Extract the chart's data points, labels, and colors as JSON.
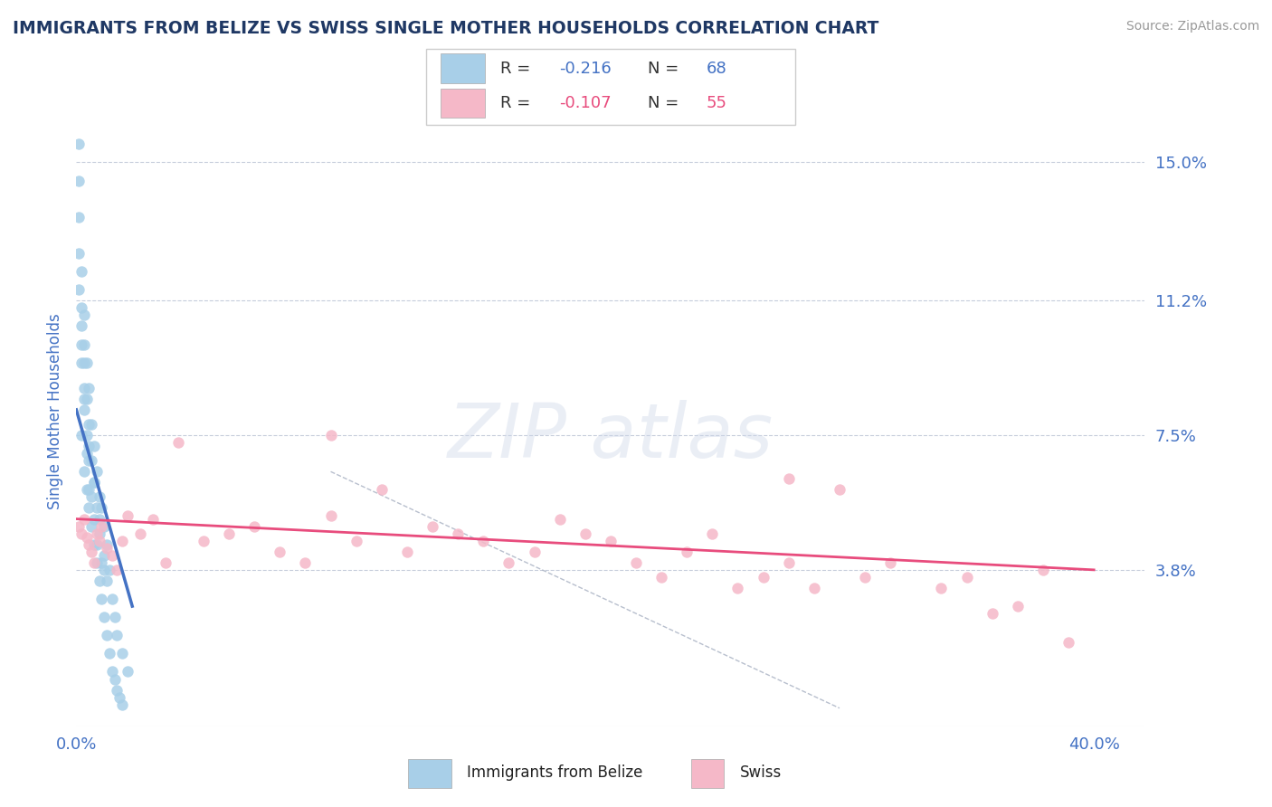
{
  "title": "IMMIGRANTS FROM BELIZE VS SWISS SINGLE MOTHER HOUSEHOLDS CORRELATION CHART",
  "source": "Source: ZipAtlas.com",
  "ylabel": "Single Mother Households",
  "xlim": [
    0.0,
    0.42
  ],
  "ylim": [
    -0.005,
    0.168
  ],
  "yticks": [
    0.038,
    0.075,
    0.112,
    0.15
  ],
  "ytick_labels": [
    "3.8%",
    "7.5%",
    "11.2%",
    "15.0%"
  ],
  "xticks": [
    0.0,
    0.1,
    0.2,
    0.3,
    0.4
  ],
  "xtick_labels": [
    "0.0%",
    "",
    "",
    "",
    "40.0%"
  ],
  "belize_color": "#a8cfe8",
  "swiss_color": "#f5b8c8",
  "belize_line_color": "#4472c4",
  "swiss_line_color": "#e84c7d",
  "belize_R_label": "-0.216",
  "belize_N_label": "68",
  "swiss_R_label": "-0.107",
  "swiss_N_label": "55",
  "title_color": "#1f3864",
  "tick_color": "#4472c4",
  "background_color": "#ffffff",
  "grid_color": "#c0c8d8",
  "belize_line_x": [
    0.0,
    0.022
  ],
  "belize_line_y": [
    0.082,
    0.028
  ],
  "swiss_line_x": [
    0.0,
    0.4
  ],
  "swiss_line_y": [
    0.052,
    0.038
  ],
  "diag_line_x": [
    0.1,
    0.3
  ],
  "diag_line_y": [
    0.065,
    0.0
  ],
  "belize_x": [
    0.001,
    0.001,
    0.001,
    0.001,
    0.001,
    0.002,
    0.002,
    0.002,
    0.002,
    0.002,
    0.003,
    0.003,
    0.003,
    0.003,
    0.003,
    0.004,
    0.004,
    0.004,
    0.004,
    0.005,
    0.005,
    0.005,
    0.005,
    0.006,
    0.006,
    0.006,
    0.007,
    0.007,
    0.007,
    0.008,
    0.008,
    0.008,
    0.009,
    0.009,
    0.01,
    0.01,
    0.011,
    0.011,
    0.012,
    0.012,
    0.013,
    0.014,
    0.015,
    0.016,
    0.018,
    0.02,
    0.002,
    0.003,
    0.004,
    0.005,
    0.006,
    0.007,
    0.008,
    0.009,
    0.01,
    0.011,
    0.012,
    0.013,
    0.014,
    0.015,
    0.016,
    0.017,
    0.018,
    0.003,
    0.005,
    0.007,
    0.009,
    0.011
  ],
  "belize_y": [
    0.145,
    0.135,
    0.125,
    0.115,
    0.155,
    0.12,
    0.11,
    0.105,
    0.095,
    0.1,
    0.108,
    0.095,
    0.088,
    0.082,
    0.1,
    0.095,
    0.085,
    0.075,
    0.07,
    0.088,
    0.078,
    0.068,
    0.06,
    0.078,
    0.068,
    0.058,
    0.072,
    0.062,
    0.052,
    0.065,
    0.055,
    0.045,
    0.058,
    0.048,
    0.055,
    0.04,
    0.05,
    0.038,
    0.045,
    0.035,
    0.038,
    0.03,
    0.025,
    0.02,
    0.015,
    0.01,
    0.075,
    0.065,
    0.06,
    0.055,
    0.05,
    0.045,
    0.04,
    0.035,
    0.03,
    0.025,
    0.02,
    0.015,
    0.01,
    0.008,
    0.005,
    0.003,
    0.001,
    0.085,
    0.072,
    0.062,
    0.052,
    0.042
  ],
  "swiss_x": [
    0.001,
    0.002,
    0.003,
    0.004,
    0.005,
    0.006,
    0.007,
    0.008,
    0.009,
    0.01,
    0.012,
    0.014,
    0.016,
    0.018,
    0.02,
    0.025,
    0.03,
    0.035,
    0.04,
    0.05,
    0.06,
    0.07,
    0.08,
    0.09,
    0.1,
    0.11,
    0.12,
    0.14,
    0.15,
    0.16,
    0.17,
    0.18,
    0.19,
    0.2,
    0.21,
    0.22,
    0.23,
    0.24,
    0.25,
    0.26,
    0.27,
    0.28,
    0.29,
    0.3,
    0.31,
    0.32,
    0.34,
    0.35,
    0.36,
    0.37,
    0.38,
    0.39,
    0.13,
    0.1,
    0.28
  ],
  "swiss_y": [
    0.05,
    0.048,
    0.052,
    0.047,
    0.045,
    0.043,
    0.04,
    0.048,
    0.046,
    0.05,
    0.044,
    0.042,
    0.038,
    0.046,
    0.053,
    0.048,
    0.052,
    0.04,
    0.073,
    0.046,
    0.048,
    0.05,
    0.043,
    0.04,
    0.053,
    0.046,
    0.06,
    0.05,
    0.048,
    0.046,
    0.04,
    0.043,
    0.052,
    0.048,
    0.046,
    0.04,
    0.036,
    0.043,
    0.048,
    0.033,
    0.036,
    0.04,
    0.033,
    0.06,
    0.036,
    0.04,
    0.033,
    0.036,
    0.026,
    0.028,
    0.038,
    0.018,
    0.043,
    0.075,
    0.063
  ]
}
